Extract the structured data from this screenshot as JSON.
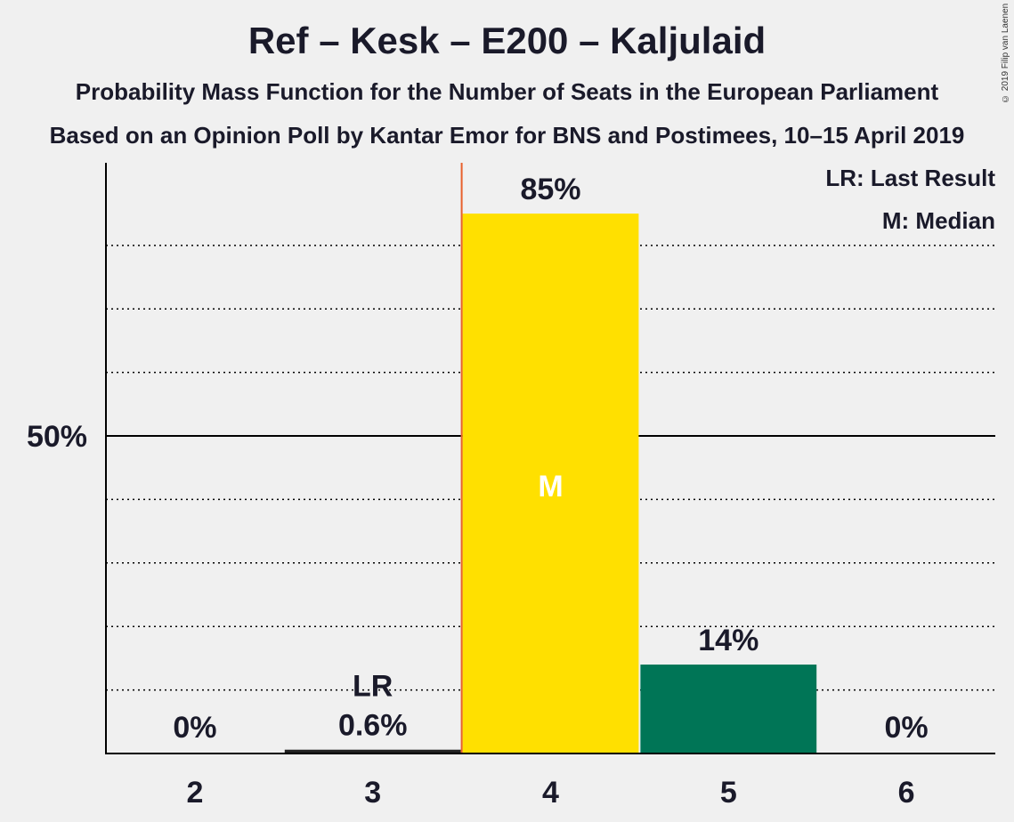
{
  "title": "Ref – Kesk – E200 – Kaljulaid",
  "subtitle_1": "Probability Mass Function for the Number of Seats in the European Parliament",
  "subtitle_2": "Based on an Opinion Poll by Kantar Emor for BNS and Postimees, 10–15 April 2019",
  "copyright": "© 2019 Filip van Laenen",
  "legend": {
    "last_result": "LR: Last Result",
    "median": "M: Median"
  },
  "colors": {
    "background": "#f0f0f0",
    "bar_median": "#ffe000",
    "bar_other": "#007556",
    "bar_last_result": "#222222",
    "median_line": "#e8612c",
    "axis": "#000000"
  },
  "chart_data": {
    "type": "bar",
    "title": "Ref – Kesk – E200 – Kaljulaid",
    "xlabel": "",
    "ylabel": "",
    "categories": [
      "2",
      "3",
      "4",
      "5",
      "6"
    ],
    "values": [
      0,
      0.6,
      85,
      14,
      0
    ],
    "value_labels": [
      "0%",
      "0.6%",
      "85%",
      "14%",
      "0%"
    ],
    "ylim": [
      0,
      93
    ],
    "y_ticks": [
      {
        "value": 50,
        "label": "50%"
      }
    ],
    "gridlines_dotted": [
      10,
      20,
      30,
      40,
      60,
      70,
      80
    ],
    "last_result_category": "3",
    "last_result_marker": "LR",
    "median_category": "4",
    "median_marker": "M",
    "legend_position": "top-right"
  }
}
